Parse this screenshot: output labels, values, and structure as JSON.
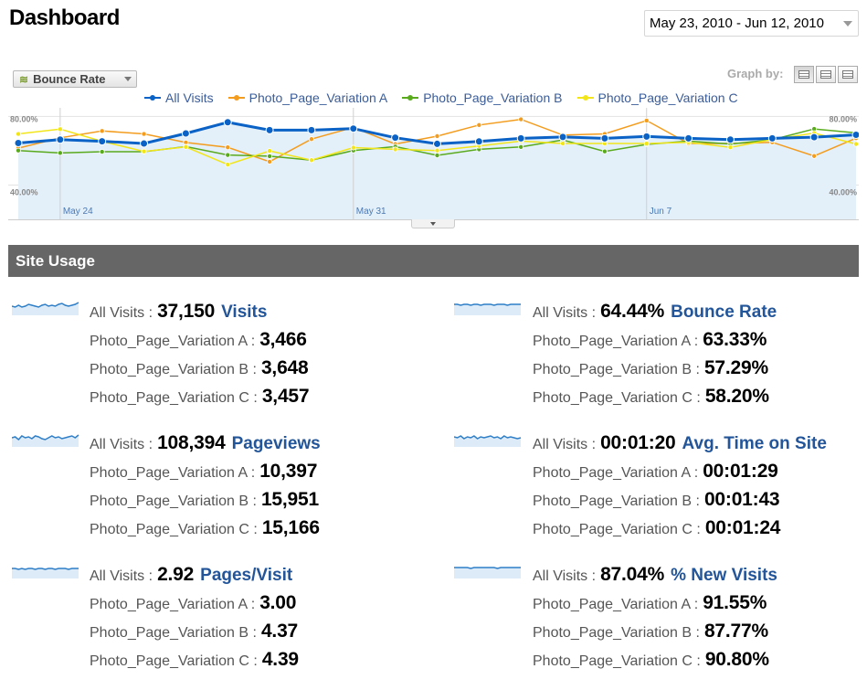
{
  "page": {
    "title": "Dashboard"
  },
  "date_range": {
    "label": "May 23, 2010 - Jun 12, 2010"
  },
  "graph_controls": {
    "metric_selector": {
      "label": "Bounce Rate",
      "icon": "line-chart-icon"
    },
    "graph_by_label": "Graph by:",
    "graph_by_options": [
      "day",
      "week",
      "month"
    ]
  },
  "legend": [
    {
      "name": "All Visits",
      "color": "#0b62c6"
    },
    {
      "name": "Photo_Page_Variation A",
      "color": "#f39c1d"
    },
    {
      "name": "Photo_Page_Variation B",
      "color": "#5aaa1e"
    },
    {
      "name": "Photo_Page_Variation C",
      "color": "#f2e61a"
    }
  ],
  "chart_data": {
    "type": "line",
    "title": "",
    "xlabel": "",
    "ylabel": "",
    "x": [
      "2010-05-23",
      "2010-05-24",
      "2010-05-25",
      "2010-05-26",
      "2010-05-27",
      "2010-05-28",
      "2010-05-29",
      "2010-05-30",
      "2010-05-31",
      "2010-06-01",
      "2010-06-02",
      "2010-06-03",
      "2010-06-04",
      "2010-06-05",
      "2010-06-06",
      "2010-06-07",
      "2010-06-08",
      "2010-06-09",
      "2010-06-10",
      "2010-06-11",
      "2010-06-12"
    ],
    "x_tick_labels": [
      "May 24",
      "May 31",
      "Jun 7"
    ],
    "y_tick_labels": [
      "80.00%",
      "40.00%"
    ],
    "ylim": [
      20,
      85
    ],
    "area_fill_series": "All Visits",
    "series": [
      {
        "name": "All Visits",
        "color": "#0b62c6",
        "values": [
          64.5,
          66.5,
          65.5,
          64.2,
          70.1,
          76.6,
          72.0,
          72.0,
          72.9,
          67.6,
          64.0,
          65.4,
          67.2,
          68.0,
          67.2,
          68.3,
          67.2,
          66.5,
          67.2,
          67.9,
          69.3
        ]
      },
      {
        "name": "Photo_Page_Variation A",
        "color": "#f39c1d",
        "values": [
          61.5,
          67.5,
          71.5,
          69.8,
          64.8,
          62.0,
          53.6,
          66.8,
          73.6,
          63.9,
          68.5,
          75.0,
          78.3,
          69.1,
          69.8,
          77.6,
          64.2,
          64.2,
          64.9,
          56.9,
          67.3
        ]
      },
      {
        "name": "Photo_Page_Variation B",
        "color": "#5aaa1e",
        "values": [
          60.1,
          58.7,
          59.4,
          59.4,
          62.4,
          57.5,
          56.8,
          54.5,
          60.1,
          62.4,
          57.3,
          60.8,
          62.2,
          66.3,
          59.6,
          63.7,
          65.6,
          63.9,
          66.4,
          72.7,
          70.4
        ]
      },
      {
        "name": "Photo_Page_Variation C",
        "color": "#f2e61a",
        "values": [
          69.8,
          72.6,
          65.5,
          59.6,
          62.2,
          51.9,
          59.9,
          54.5,
          61.8,
          60.8,
          60.1,
          62.8,
          65.6,
          64.2,
          64.2,
          64.2,
          64.9,
          62.0,
          66.5,
          70.3,
          63.9
        ]
      }
    ]
  },
  "site_usage": {
    "header": "Site Usage",
    "metrics": [
      {
        "name": "Visits",
        "all_label": "All Visits :",
        "all_value": "37,150",
        "variations": [
          {
            "label": "Photo_Page_Variation A :",
            "value": "3,466"
          },
          {
            "label": "Photo_Page_Variation B :",
            "value": "3,648"
          },
          {
            "label": "Photo_Page_Variation C :",
            "value": "3,457"
          }
        ],
        "sparkline": [
          10,
          9,
          11,
          9,
          10,
          12,
          11,
          10,
          9,
          11,
          12,
          10,
          11,
          10,
          12,
          13,
          11,
          10,
          11,
          12,
          14
        ]
      },
      {
        "name": "Bounce Rate",
        "all_label": "All Visits :",
        "all_value": "64.44%",
        "variations": [
          {
            "label": "Photo_Page_Variation A :",
            "value": "63.33%"
          },
          {
            "label": "Photo_Page_Variation B :",
            "value": "57.29%"
          },
          {
            "label": "Photo_Page_Variation C :",
            "value": "58.20%"
          }
        ],
        "sparkline": [
          12,
          12,
          11,
          12,
          12,
          11,
          12,
          12,
          11,
          12,
          12,
          12,
          11,
          12,
          12,
          12,
          11,
          12,
          12,
          12,
          12
        ]
      },
      {
        "name": "Pageviews",
        "all_label": "All Visits :",
        "all_value": "108,394",
        "variations": [
          {
            "label": "Photo_Page_Variation A :",
            "value": "10,397"
          },
          {
            "label": "Photo_Page_Variation B :",
            "value": "15,951"
          },
          {
            "label": "Photo_Page_Variation C :",
            "value": "15,166"
          }
        ],
        "sparkline": [
          10,
          11,
          8,
          12,
          10,
          11,
          9,
          12,
          11,
          9,
          8,
          10,
          12,
          10,
          11,
          9,
          10,
          11,
          12,
          10,
          13
        ]
      },
      {
        "name": "Avg. Time on Site",
        "all_label": "All Visits :",
        "all_value": "00:01:20",
        "variations": [
          {
            "label": "Photo_Page_Variation A :",
            "value": "00:01:29"
          },
          {
            "label": "Photo_Page_Variation B :",
            "value": "00:01:43"
          },
          {
            "label": "Photo_Page_Variation C :",
            "value": "00:01:24"
          }
        ],
        "sparkline": [
          11,
          10,
          12,
          9,
          11,
          10,
          12,
          9,
          11,
          10,
          11,
          12,
          10,
          11,
          9,
          12,
          10,
          11,
          10,
          9,
          10
        ]
      },
      {
        "name": "Pages/Visit",
        "all_label": "All Visits :",
        "all_value": "2.92",
        "variations": [
          {
            "label": "Photo_Page_Variation A :",
            "value": "3.00"
          },
          {
            "label": "Photo_Page_Variation B :",
            "value": "4.37"
          },
          {
            "label": "Photo_Page_Variation C :",
            "value": "4.39"
          }
        ],
        "sparkline": [
          11,
          11,
          10,
          11,
          10,
          11,
          11,
          10,
          11,
          11,
          10,
          11,
          11,
          10,
          11,
          11,
          11,
          10,
          11,
          11,
          11
        ]
      },
      {
        "name": "% New Visits",
        "all_label": "All Visits :",
        "all_value": "87.04%",
        "variations": [
          {
            "label": "Photo_Page_Variation A :",
            "value": "91.55%"
          },
          {
            "label": "Photo_Page_Variation B :",
            "value": "87.77%"
          },
          {
            "label": "Photo_Page_Variation C :",
            "value": "90.80%"
          }
        ],
        "sparkline": [
          12,
          12,
          12,
          12,
          12,
          11,
          12,
          12,
          12,
          12,
          12,
          12,
          12,
          11,
          12,
          12,
          12,
          12,
          12,
          12,
          12
        ]
      }
    ]
  }
}
